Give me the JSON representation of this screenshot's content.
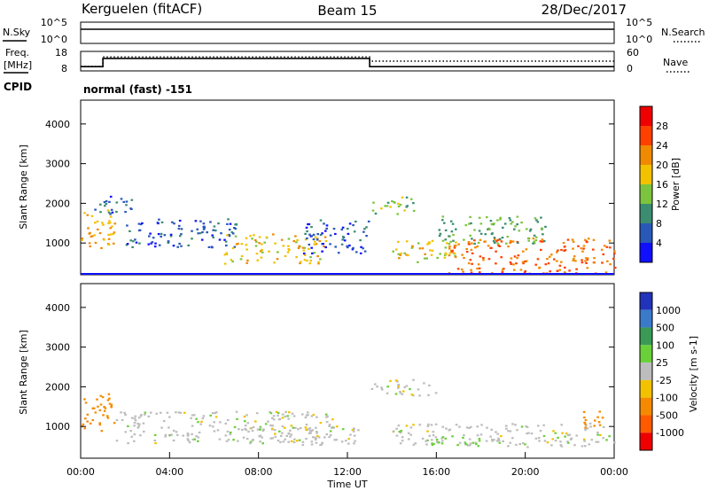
{
  "header": {
    "station": "Kerguelen (fitACF)",
    "beam": "Beam 15",
    "date": "28/Dec/2017"
  },
  "noise_panel": {
    "left_label": "N.Sky",
    "right_label": "N.Search",
    "left_ticks": [
      "10^5",
      "10^0"
    ],
    "right_ticks": [
      "10^5",
      "10^0"
    ]
  },
  "freq_panel": {
    "left_label_1": "Freq.",
    "left_label_2": "[MHz]",
    "left_ticks": [
      "18",
      "8"
    ],
    "right_label": "Nave",
    "right_ticks": [
      "60",
      "0"
    ],
    "freq_series": [
      {
        "time_h": 0,
        "mhz": 10.2
      },
      {
        "time_h": 1,
        "mhz": 10.2
      },
      {
        "time_h": 1,
        "mhz": 14.4
      },
      {
        "time_h": 13,
        "mhz": 14.4
      },
      {
        "time_h": 13,
        "mhz": 10.2
      },
      {
        "time_h": 24,
        "mhz": 10.2
      }
    ],
    "nave_series": [
      {
        "time_h": 0,
        "nave": 14
      },
      {
        "time_h": 1,
        "nave": 14
      },
      {
        "time_h": 1,
        "nave": 43
      },
      {
        "time_h": 13,
        "nave": 43
      },
      {
        "time_h": 13,
        "nave": 30
      },
      {
        "time_h": 24,
        "nave": 30
      }
    ]
  },
  "cpid": {
    "label": "CPID",
    "mode": "normal (fast) -151"
  },
  "chart_data": [
    {
      "type": "heatmap",
      "name": "power",
      "ylabel": "Slant Range [km]",
      "yticks": [
        1000,
        2000,
        3000,
        4000
      ],
      "ylim": [
        200,
        4600
      ],
      "xlim": [
        0,
        24
      ],
      "colorbar_label": "Power [dB]",
      "colorbar_ticks": [
        4,
        8,
        12,
        16,
        20,
        24,
        28
      ],
      "colorbar_colors": [
        "#1010ff",
        "#2a58b8",
        "#3b8c70",
        "#7cc43e",
        "#f2c200",
        "#f08a00",
        "#ff4000",
        "#ee0000"
      ],
      "echo_regions": [
        {
          "t0": 0.0,
          "t1": 1.5,
          "r0": 800,
          "r1": 1850,
          "value": 20
        },
        {
          "t0": 0.6,
          "t1": 2.6,
          "r0": 1750,
          "r1": 2200,
          "value": 6
        },
        {
          "t0": 2.0,
          "t1": 7.0,
          "r0": 900,
          "r1": 1650,
          "value": 6
        },
        {
          "t0": 6.4,
          "t1": 11.0,
          "r0": 500,
          "r1": 1250,
          "value": 18
        },
        {
          "t0": 10.0,
          "t1": 13.0,
          "r0": 750,
          "r1": 1600,
          "value": 6
        },
        {
          "t0": 13.0,
          "t1": 15.0,
          "r0": 1750,
          "r1": 2200,
          "value": 14
        },
        {
          "t0": 14.0,
          "t1": 17.0,
          "r0": 500,
          "r1": 1100,
          "value": 18
        },
        {
          "t0": 16.5,
          "t1": 24.0,
          "r0": 250,
          "r1": 1150,
          "value": 24
        },
        {
          "t0": 16.0,
          "t1": 21.0,
          "r0": 1000,
          "r1": 1700,
          "value": 12
        }
      ]
    },
    {
      "type": "heatmap",
      "name": "velocity",
      "ylabel": "Slant Range [km]",
      "xlabel": "Time UT",
      "xticks": [
        "00:00",
        "04:00",
        "08:00",
        "12:00",
        "16:00",
        "20:00",
        "00:00"
      ],
      "yticks": [
        1000,
        2000,
        3000,
        4000
      ],
      "ylim": [
        200,
        4600
      ],
      "xlim": [
        0,
        24
      ],
      "colorbar_label": "Velocity [m s-1]",
      "colorbar_ticks": [
        "1000",
        "500",
        "100",
        "25",
        "-25",
        "-100",
        "-500",
        "-1000"
      ],
      "colorbar_colors": [
        "#2233bb",
        "#3a7ac8",
        "#3a9a55",
        "#6ad03a",
        "#bdbdbd",
        "#f2c200",
        "#f58a00",
        "#ff5a00",
        "#ee0000"
      ],
      "echo_regions": [
        {
          "t0": 0.0,
          "t1": 1.5,
          "r0": 900,
          "r1": 1850,
          "value": -300
        },
        {
          "t0": 1.5,
          "t1": 11.5,
          "r0": 600,
          "r1": 1400,
          "value": 0
        },
        {
          "t0": 6.5,
          "t1": 12.5,
          "r0": 550,
          "r1": 1000,
          "value": 0
        },
        {
          "t0": 13.0,
          "t1": 16.0,
          "r0": 1800,
          "r1": 2200,
          "value": 0
        },
        {
          "t0": 14.0,
          "t1": 24.0,
          "r0": 500,
          "r1": 1100,
          "value": 0
        },
        {
          "t0": 15.5,
          "t1": 18.0,
          "r0": 550,
          "r1": 800,
          "value": 60
        },
        {
          "t0": 22.5,
          "t1": 23.5,
          "r0": 900,
          "r1": 1400,
          "value": -200
        }
      ]
    }
  ]
}
